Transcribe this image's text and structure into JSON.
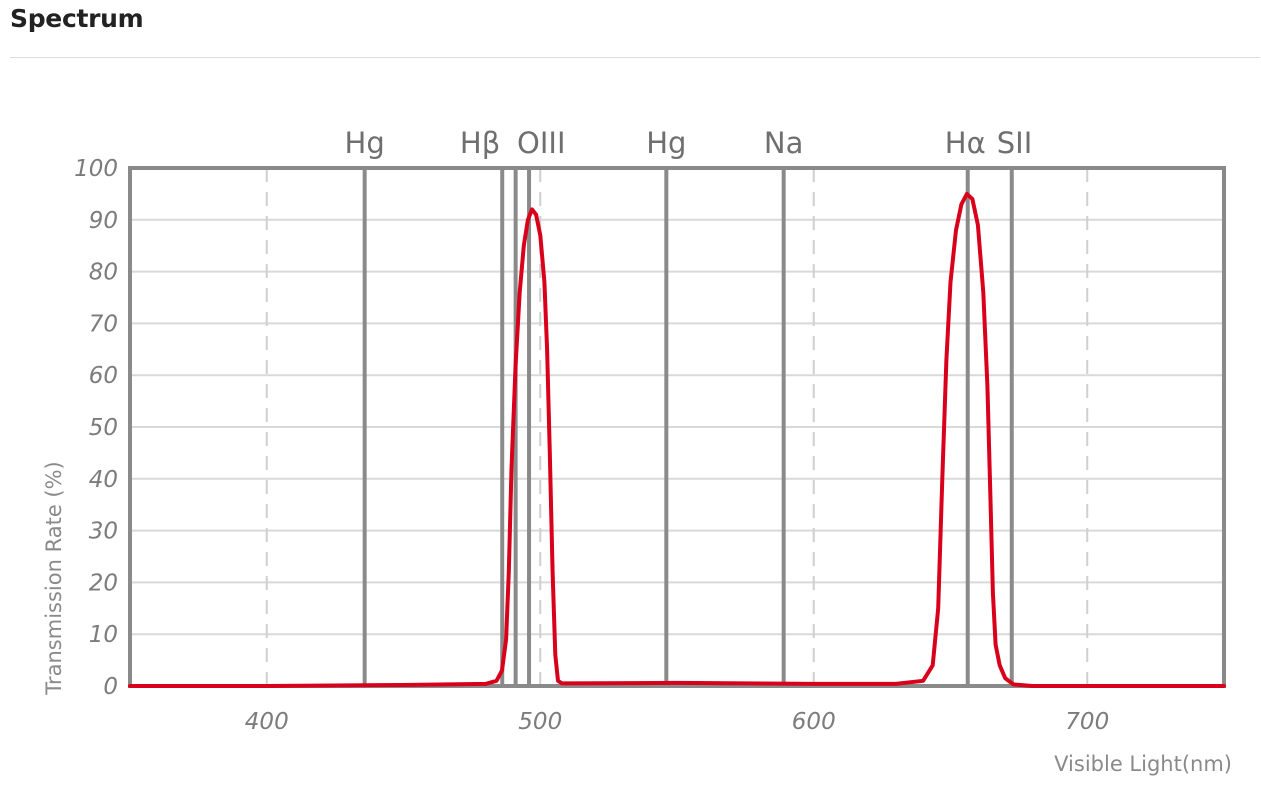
{
  "header": {
    "title": "Spectrum"
  },
  "chart_data": {
    "type": "line",
    "xlabel": "Visible Light(nm)",
    "ylabel": "Transmission Rate (%)",
    "xlim": [
      350,
      750
    ],
    "ylim": [
      0,
      100
    ],
    "x_ticks": [
      400,
      500,
      600,
      700
    ],
    "y_ticks": [
      0,
      10,
      20,
      30,
      40,
      50,
      60,
      70,
      80,
      90,
      100
    ],
    "grid": {
      "horizontal": true,
      "vertical_dashed": true
    },
    "legend": "none",
    "colors": {
      "curve": "#d9001b",
      "reference_lines": "#8a8a8a",
      "grid": "#d9d9d9",
      "frame": "#8a8a8a"
    },
    "reference_lines": [
      {
        "label": "Hg",
        "x": 435.8
      },
      {
        "label": "Hβ",
        "x": 486.1
      },
      {
        "label": "",
        "x": 491
      },
      {
        "label": "OIII",
        "x": 495.9
      },
      {
        "label": "Hg",
        "x": 546.1
      },
      {
        "label": "Na",
        "x": 589
      },
      {
        "label": "Hα",
        "x": 656.3
      },
      {
        "label": "SII",
        "x": 672.4
      }
    ],
    "series": [
      {
        "values": [
          [
            350,
            0
          ],
          [
            400,
            0
          ],
          [
            450,
            0.2
          ],
          [
            480,
            0.4
          ],
          [
            484,
            1
          ],
          [
            486,
            3
          ],
          [
            487.5,
            9
          ],
          [
            488.5,
            22
          ],
          [
            489.5,
            42
          ],
          [
            491,
            62
          ],
          [
            492.5,
            76
          ],
          [
            494,
            85
          ],
          [
            495.5,
            90
          ],
          [
            497,
            92
          ],
          [
            498.5,
            91
          ],
          [
            500,
            87
          ],
          [
            501.5,
            78
          ],
          [
            502.5,
            65
          ],
          [
            503.5,
            45
          ],
          [
            504.5,
            22
          ],
          [
            505.5,
            6
          ],
          [
            506.5,
            1
          ],
          [
            508,
            0.5
          ],
          [
            550,
            0.6
          ],
          [
            600,
            0.4
          ],
          [
            630,
            0.4
          ],
          [
            640,
            1
          ],
          [
            643.5,
            4
          ],
          [
            645.5,
            15
          ],
          [
            647,
            40
          ],
          [
            648.5,
            63
          ],
          [
            650,
            78
          ],
          [
            652,
            88
          ],
          [
            654,
            93
          ],
          [
            656,
            95
          ],
          [
            658,
            94
          ],
          [
            660,
            89
          ],
          [
            662,
            76
          ],
          [
            663.5,
            58
          ],
          [
            664.5,
            38
          ],
          [
            665.5,
            18
          ],
          [
            666.5,
            8
          ],
          [
            668,
            4
          ],
          [
            670,
            1.5
          ],
          [
            673,
            0.3
          ],
          [
            680,
            0
          ],
          [
            750,
            0
          ]
        ]
      }
    ]
  }
}
